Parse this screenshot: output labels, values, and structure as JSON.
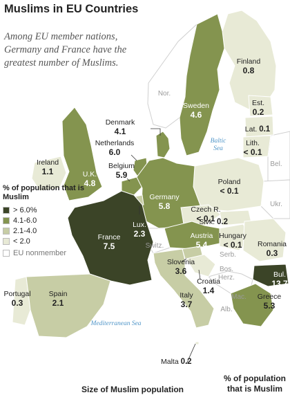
{
  "title": "Muslims in EU Countries",
  "subtitle": "Among EU member nations, Germany and France have the greatest number of Muslims.",
  "legend": {
    "title": "% of population that is Muslim",
    "items": [
      {
        "label": "> 6.0%",
        "color": "#3b4427"
      },
      {
        "label": "4.1-6.0",
        "color": "#84944f"
      },
      {
        "label": "2.1-4.0",
        "color": "#c7cda5"
      },
      {
        "label": "< 2.0",
        "color": "#e8ead6"
      }
    ],
    "nonmember": {
      "label": "EU nonmember",
      "color": "#ffffff"
    }
  },
  "countries": [
    {
      "name": "Finland",
      "value": "0.8",
      "class": "< 2.0"
    },
    {
      "name": "Sweden",
      "value": "4.6",
      "class": "4.1-6.0"
    },
    {
      "name": "Est.",
      "value": "0.2",
      "class": "< 2.0"
    },
    {
      "name": "Lat.",
      "value": "0.1",
      "class": "< 2.0"
    },
    {
      "name": "Lith.",
      "value": "< 0.1",
      "class": "< 2.0"
    },
    {
      "name": "Denmark",
      "value": "4.1",
      "class": "4.1-6.0"
    },
    {
      "name": "Netherlands",
      "value": "6.0",
      "class": "4.1-6.0"
    },
    {
      "name": "Belgium",
      "value": "5.9",
      "class": "4.1-6.0"
    },
    {
      "name": "Ireland",
      "value": "1.1",
      "class": "< 2.0"
    },
    {
      "name": "U.K.",
      "value": "4.8",
      "class": "4.1-6.0"
    },
    {
      "name": "Poland",
      "value": "< 0.1",
      "class": "< 2.0"
    },
    {
      "name": "Germany",
      "value": "5.8",
      "class": "4.1-6.0"
    },
    {
      "name": "Czech R.",
      "value": "< 0.1",
      "class": "< 2.0"
    },
    {
      "name": "Slvk.",
      "value": "0.2",
      "class": "< 2.0"
    },
    {
      "name": "Lux.",
      "value": "2.3",
      "class": "2.1-4.0"
    },
    {
      "name": "France",
      "value": "7.5",
      "class": "> 6.0%"
    },
    {
      "name": "Austria",
      "value": "5.4",
      "class": "4.1-6.0"
    },
    {
      "name": "Hungary",
      "value": "< 0.1",
      "class": "< 2.0"
    },
    {
      "name": "Romania",
      "value": "0.3",
      "class": "< 2.0"
    },
    {
      "name": "Slovenia",
      "value": "3.6",
      "class": "2.1-4.0"
    },
    {
      "name": "Croatia",
      "value": "1.4",
      "class": "< 2.0"
    },
    {
      "name": "Portugal",
      "value": "0.3",
      "class": "< 2.0"
    },
    {
      "name": "Spain",
      "value": "2.1",
      "class": "2.1-4.0"
    },
    {
      "name": "Italy",
      "value": "3.7",
      "class": "2.1-4.0"
    },
    {
      "name": "Bul.",
      "value": "13.7",
      "class": "> 6.0%"
    },
    {
      "name": "Greece",
      "value": "5.3",
      "class": "4.1-6.0"
    },
    {
      "name": "Malta",
      "value": "0.2",
      "class": "< 2.0"
    }
  ],
  "nonmember_labels": [
    "Nor.",
    "Bel.",
    "Ukr.",
    "Switz.",
    "Bos.",
    "Herz.",
    "Serb.",
    "Mac.",
    "Alb."
  ],
  "water_labels": [
    "Baltic Sea",
    "Mediterranean Sea"
  ],
  "footer": {
    "left": "Size of Muslim population",
    "right": "% of population that is Muslim"
  }
}
